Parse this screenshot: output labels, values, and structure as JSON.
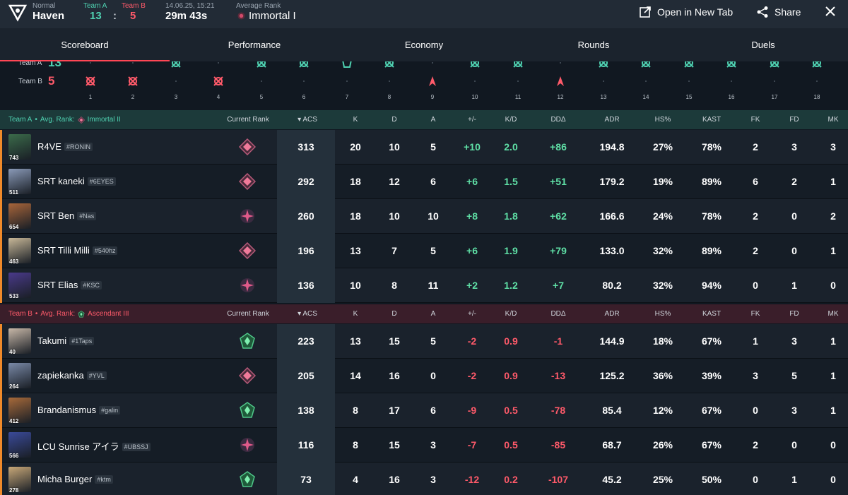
{
  "header": {
    "mode": "Normal",
    "map": "Haven",
    "team_a_label": "Team A",
    "team_b_label": "Team B",
    "team_a_score": "13",
    "score_sep": ":",
    "team_b_score": "5",
    "date": "14.06.25, 15:21",
    "duration": "29m 43s",
    "avg_rank_label": "Average Rank",
    "avg_rank": "Immortal I",
    "open_tab": "Open in New Tab",
    "share": "Share"
  },
  "tabs": [
    "Scoreboard",
    "Performance",
    "Economy",
    "Rounds",
    "Duels"
  ],
  "timeline": {
    "team_a_label": "Team A",
    "team_a_score": "13",
    "team_b_label": "Team B",
    "team_b_score": "5",
    "rounds": [
      {
        "n": "1",
        "winner": "B",
        "type": "elim"
      },
      {
        "n": "2",
        "winner": "B",
        "type": "elim"
      },
      {
        "n": "3",
        "winner": "A",
        "type": "elim"
      },
      {
        "n": "4",
        "winner": "B",
        "type": "elim"
      },
      {
        "n": "5",
        "winner": "A",
        "type": "elim"
      },
      {
        "n": "6",
        "winner": "A",
        "type": "elim"
      },
      {
        "n": "7",
        "winner": "A",
        "type": "defuse"
      },
      {
        "n": "8",
        "winner": "A",
        "type": "elim"
      },
      {
        "n": "9",
        "winner": "B",
        "type": "spike"
      },
      {
        "n": "10",
        "winner": "A",
        "type": "elim"
      },
      {
        "n": "11",
        "winner": "A",
        "type": "elim"
      },
      {
        "n": "12",
        "winner": "B",
        "type": "spike"
      },
      {
        "n": "13",
        "winner": "A",
        "type": "elim"
      },
      {
        "n": "14",
        "winner": "A",
        "type": "elim"
      },
      {
        "n": "15",
        "winner": "A",
        "type": "elim"
      },
      {
        "n": "16",
        "winner": "A",
        "type": "elim"
      },
      {
        "n": "17",
        "winner": "A",
        "type": "elim"
      },
      {
        "n": "18",
        "winner": "A",
        "type": "elim"
      }
    ]
  },
  "columns": {
    "current_rank": "Current Rank",
    "acs": "ACS",
    "k": "K",
    "d": "D",
    "a": "A",
    "pm": "+/-",
    "kd": "K/D",
    "dd": "DDΔ",
    "adr": "ADR",
    "hs": "HS%",
    "kast": "KAST",
    "fk": "FK",
    "fd": "FD",
    "mk": "MK"
  },
  "team_a": {
    "name": "Team A",
    "bullet": "•",
    "avg_rank_label": "Avg. Rank:",
    "avg_rank": "Immortal II",
    "players": [
      {
        "name": "R4VE",
        "tag": "#RONIN",
        "level": "743",
        "rank": "immortal",
        "acs": "313",
        "k": "20",
        "d": "10",
        "a": "5",
        "pm": "+10",
        "kd": "2.0",
        "dd": "+86",
        "adr": "194.8",
        "hs": "27%",
        "kast": "78%",
        "fk": "2",
        "fd": "3",
        "mk": "3"
      },
      {
        "name": "SRT kaneki",
        "tag": "#6EYES",
        "level": "511",
        "rank": "immortal",
        "acs": "292",
        "k": "18",
        "d": "12",
        "a": "6",
        "pm": "+6",
        "kd": "1.5",
        "dd": "+51",
        "adr": "179.2",
        "hs": "19%",
        "kast": "89%",
        "fk": "6",
        "fd": "2",
        "mk": "1"
      },
      {
        "name": "SRT Ben",
        "tag": "#Nas",
        "level": "654",
        "rank": "radiant",
        "acs": "260",
        "k": "18",
        "d": "10",
        "a": "10",
        "pm": "+8",
        "kd": "1.8",
        "dd": "+62",
        "adr": "166.6",
        "hs": "24%",
        "kast": "78%",
        "fk": "2",
        "fd": "0",
        "mk": "2"
      },
      {
        "name": "SRT Tilli Milli",
        "tag": "#540hz",
        "level": "463",
        "rank": "immortal",
        "acs": "196",
        "k": "13",
        "d": "7",
        "a": "5",
        "pm": "+6",
        "kd": "1.9",
        "dd": "+79",
        "adr": "133.0",
        "hs": "32%",
        "kast": "89%",
        "fk": "2",
        "fd": "0",
        "mk": "1"
      },
      {
        "name": "SRT Elias",
        "tag": "#KSC",
        "level": "533",
        "rank": "radiant",
        "acs": "136",
        "k": "10",
        "d": "8",
        "a": "11",
        "pm": "+2",
        "kd": "1.2",
        "dd": "+7",
        "adr": "80.2",
        "hs": "32%",
        "kast": "94%",
        "fk": "0",
        "fd": "1",
        "mk": "0"
      }
    ]
  },
  "team_b": {
    "name": "Team B",
    "bullet": "•",
    "avg_rank_label": "Avg. Rank:",
    "avg_rank": "Ascendant III",
    "players": [
      {
        "name": "Takumi",
        "tag": "#1Taps",
        "level": "40",
        "rank": "ascendant",
        "acs": "223",
        "k": "13",
        "d": "15",
        "a": "5",
        "pm": "-2",
        "kd": "0.9",
        "dd": "-1",
        "adr": "144.9",
        "hs": "18%",
        "kast": "67%",
        "fk": "1",
        "fd": "3",
        "mk": "1"
      },
      {
        "name": "zapiekanka",
        "tag": "#YVL",
        "level": "264",
        "rank": "immortal",
        "acs": "205",
        "k": "14",
        "d": "16",
        "a": "0",
        "pm": "-2",
        "kd": "0.9",
        "dd": "-13",
        "adr": "125.2",
        "hs": "36%",
        "kast": "39%",
        "fk": "3",
        "fd": "5",
        "mk": "1"
      },
      {
        "name": "Brandanismus",
        "tag": "#galin",
        "level": "412",
        "rank": "ascendant",
        "acs": "138",
        "k": "8",
        "d": "17",
        "a": "6",
        "pm": "-9",
        "kd": "0.5",
        "dd": "-78",
        "adr": "85.4",
        "hs": "12%",
        "kast": "67%",
        "fk": "0",
        "fd": "3",
        "mk": "1"
      },
      {
        "name": "LCU Sunrise アイラ",
        "tag": "#UBSSJ",
        "level": "566",
        "rank": "radiant",
        "acs": "116",
        "k": "8",
        "d": "15",
        "a": "3",
        "pm": "-7",
        "kd": "0.5",
        "dd": "-85",
        "adr": "68.7",
        "hs": "26%",
        "kast": "67%",
        "fk": "2",
        "fd": "0",
        "mk": "0"
      },
      {
        "name": "Micha Burger",
        "tag": "#ktm",
        "level": "278",
        "rank": "ascendant",
        "acs": "73",
        "k": "4",
        "d": "16",
        "a": "3",
        "pm": "-12",
        "kd": "0.2",
        "dd": "-107",
        "adr": "45.2",
        "hs": "25%",
        "kast": "50%",
        "fk": "0",
        "fd": "1",
        "mk": "0"
      }
    ]
  },
  "colors": {
    "team_a": "#4fd1b1",
    "team_b": "#ff5a6a",
    "accent": "#ff4655",
    "positive": "#5fe0a6",
    "negative": "#ff5a6a",
    "agent_bar": "#f08a2a"
  }
}
